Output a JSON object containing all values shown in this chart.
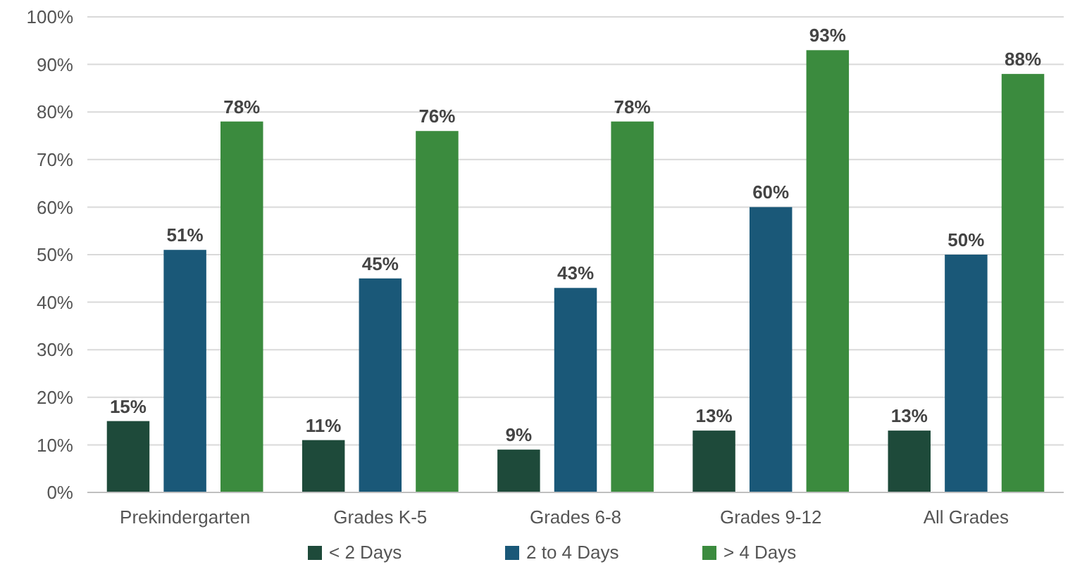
{
  "chart_data": {
    "type": "bar",
    "categories": [
      "Prekindergarten",
      "Grades K-5",
      "Grades 6-8",
      "Grades 9-12",
      "All Grades"
    ],
    "series": [
      {
        "name": "< 2 Days",
        "color": "#1e4a3a",
        "values": [
          15,
          11,
          9,
          13,
          13
        ],
        "value_labels": [
          "15%",
          "11%",
          "9%",
          "13%",
          "13%"
        ]
      },
      {
        "name": "2 to 4 Days",
        "color": "#1a5878",
        "values": [
          51,
          45,
          43,
          60,
          50
        ],
        "value_labels": [
          "51%",
          "45%",
          "43%",
          "60%",
          "50%"
        ]
      },
      {
        "name": "> 4 Days",
        "color": "#3b8b3e",
        "values": [
          78,
          76,
          78,
          93,
          88
        ],
        "value_labels": [
          "78%",
          "76%",
          "78%",
          "93%",
          "88%"
        ]
      }
    ],
    "ylim": [
      0,
      100
    ],
    "yticks": [
      {
        "value": 0,
        "label": "0%"
      },
      {
        "value": 10,
        "label": "10%"
      },
      {
        "value": 20,
        "label": "20%"
      },
      {
        "value": 30,
        "label": "30%"
      },
      {
        "value": 40,
        "label": "40%"
      },
      {
        "value": 50,
        "label": "50%"
      },
      {
        "value": 60,
        "label": "60%"
      },
      {
        "value": 70,
        "label": "70%"
      },
      {
        "value": 80,
        "label": "80%"
      },
      {
        "value": 90,
        "label": "90%"
      },
      {
        "value": 100,
        "label": "100%"
      }
    ],
    "grid": "y",
    "legend": "bottom"
  }
}
